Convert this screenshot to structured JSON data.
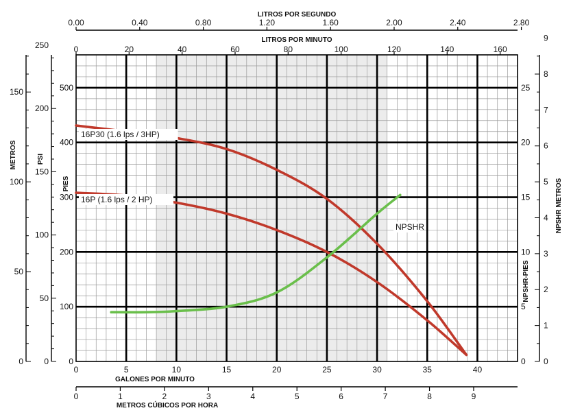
{
  "chart_data": {
    "type": "line",
    "title": "",
    "axes": {
      "bottom_primary": {
        "label": "GALONES POR MINUTO",
        "range": [
          0,
          44
        ],
        "ticks": [
          "0",
          "5",
          "10",
          "15",
          "20",
          "25",
          "30",
          "35",
          "40"
        ]
      },
      "bottom_secondary": {
        "label": "METROS CÚBICOS POR HORA",
        "ticks": [
          "0",
          "1",
          "2",
          "3",
          "4",
          "5",
          "6",
          "7",
          "8",
          "9"
        ]
      },
      "top_primary": {
        "label": "LITROS POR MINUTO",
        "ticks": [
          "0",
          "20",
          "40",
          "60",
          "80",
          "100",
          "120",
          "140",
          "160"
        ]
      },
      "top_secondary": {
        "label": "LITROS POR SEGUNDO",
        "ticks": [
          "0.00",
          "0.40",
          "0.80",
          "1.20",
          "1.60",
          "2.00",
          "2.40",
          "2.80"
        ]
      },
      "left_pies": {
        "label": "PIES",
        "range": [
          0,
          560
        ],
        "ticks": [
          "0",
          "100",
          "200",
          "300",
          "400",
          "500"
        ]
      },
      "left_psi": {
        "label": "PSI",
        "ticks": [
          "0",
          "50",
          "100",
          "150",
          "200",
          "250"
        ]
      },
      "left_metros": {
        "label": "METROS",
        "ticks": [
          "0",
          "50",
          "100",
          "150"
        ]
      },
      "right_npshr_pies": {
        "label": "NPSHR-PIES",
        "ticks": [
          "0",
          "5",
          "10",
          "15",
          "20",
          "25"
        ]
      },
      "right_npshr_metros": {
        "label": "NPSHR METROS",
        "ticks": [
          "0",
          "1",
          "2",
          "3",
          "4",
          "5",
          "6",
          "7",
          "8",
          "9"
        ]
      }
    },
    "series": [
      {
        "name": "16P30 (1.6 lps / 3HP)",
        "color": "#c0392b",
        "axis": "pies",
        "points": [
          [
            0,
            431
          ],
          [
            5,
            420
          ],
          [
            10,
            408
          ],
          [
            15,
            388
          ],
          [
            20,
            350
          ],
          [
            25,
            297
          ],
          [
            30,
            215
          ],
          [
            35,
            110
          ],
          [
            38.9,
            12
          ]
        ]
      },
      {
        "name": "16P (1.6 lps / 2 HP)",
        "color": "#c0392b",
        "axis": "pies",
        "points": [
          [
            0,
            308
          ],
          [
            5,
            303
          ],
          [
            10,
            290
          ],
          [
            15,
            270
          ],
          [
            20,
            240
          ],
          [
            25,
            200
          ],
          [
            30,
            145
          ],
          [
            35,
            75
          ],
          [
            38.9,
            12
          ]
        ]
      },
      {
        "name": "NPSHR",
        "color": "#6abf4b",
        "axis": "npshr_pies",
        "points": [
          [
            3.5,
            4.5
          ],
          [
            7,
            4.5
          ],
          [
            10,
            4.6
          ],
          [
            15,
            5.0
          ],
          [
            20,
            6.3
          ],
          [
            25,
            9.5
          ],
          [
            30,
            13.5
          ],
          [
            32.3,
            15.2
          ]
        ]
      }
    ]
  }
}
